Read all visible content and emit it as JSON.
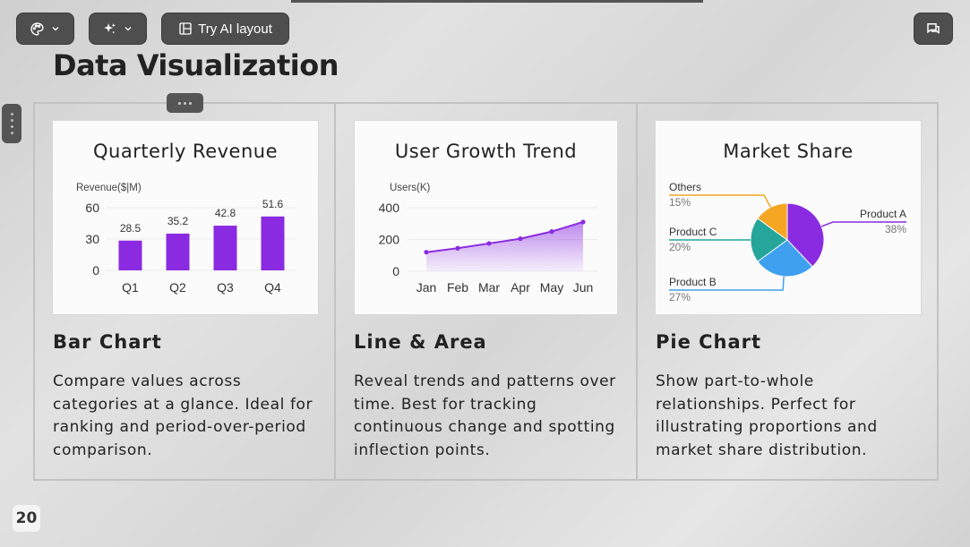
{
  "toolbar": {
    "layout_label": "Try AI layout"
  },
  "page": {
    "title": "Data Visualization",
    "number": "20"
  },
  "columns": [
    {
      "heading": "Bar Chart",
      "description": "Compare values across categories at a glance. Ideal for ranking and period-over-period comparison."
    },
    {
      "heading": "Line & Area",
      "description": "Reveal trends and patterns over time. Best for tracking continuous change and spotting inflection points."
    },
    {
      "heading": "Pie Chart",
      "description": "Show part-to-whole relationships. Perfect for illustrating proportions and market share distribution."
    }
  ],
  "colors": {
    "bar": "#8a2be2",
    "line": "#8a2be2",
    "productA": "#8a2be2",
    "productB": "#3fa0f0",
    "productC": "#26a69a",
    "others": "#f5a623"
  },
  "chart_data": [
    {
      "type": "bar",
      "title": "Quarterly Revenue",
      "ylabel": "Revenue($|M)",
      "categories": [
        "Q1",
        "Q2",
        "Q3",
        "Q4"
      ],
      "values": [
        28.5,
        35.2,
        42.8,
        51.6
      ],
      "value_labels": [
        "28.5",
        "35.2",
        "42.8",
        "51.6"
      ],
      "yticks": [
        "60",
        "30",
        "0"
      ],
      "ylim": [
        0,
        60
      ]
    },
    {
      "type": "area",
      "title": "User Growth Trend",
      "ylabel": "Users(K)",
      "categories": [
        "Jan",
        "Feb",
        "Mar",
        "Apr",
        "May",
        "Jun"
      ],
      "values": [
        120,
        145,
        175,
        205,
        250,
        310
      ],
      "yticks": [
        "400",
        "200",
        "0"
      ],
      "ylim": [
        0,
        400
      ]
    },
    {
      "type": "pie",
      "title": "Market Share",
      "slices": [
        {
          "name": "Product A",
          "value": 38,
          "label": "38%"
        },
        {
          "name": "Product B",
          "value": 27,
          "label": "27%"
        },
        {
          "name": "Product C",
          "value": 20,
          "label": "20%"
        },
        {
          "name": "Others",
          "value": 15,
          "label": "15%"
        }
      ]
    }
  ]
}
